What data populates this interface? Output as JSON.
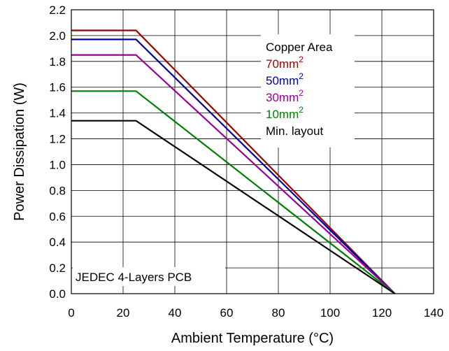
{
  "chart_data": {
    "type": "line",
    "xlabel": "Ambient Temperature (°C)",
    "ylabel": "Power Dissipation (W)",
    "xlim": [
      0,
      140
    ],
    "ylim": [
      0.0,
      2.2
    ],
    "xticks": [
      "0",
      "20",
      "40",
      "60",
      "80",
      "100",
      "120",
      "140"
    ],
    "yticks": [
      "0.0",
      "0.2",
      "0.4",
      "0.6",
      "0.8",
      "1.0",
      "1.2",
      "1.4",
      "1.6",
      "1.8",
      "2.0",
      "2.2"
    ],
    "grid": true,
    "legend_placement": "top-right",
    "legend_title": "Copper Area",
    "annotation": "JEDEC 4-Layers PCB",
    "series": [
      {
        "name": "70mm",
        "sup": "2",
        "color": "#990000",
        "x": [
          0,
          25,
          125
        ],
        "y": [
          2.04,
          2.04,
          0.0
        ]
      },
      {
        "name": "50mm",
        "sup": "2",
        "color": "#000099",
        "x": [
          0,
          25,
          125
        ],
        "y": [
          1.97,
          1.97,
          0.0
        ]
      },
      {
        "name": "30mm",
        "sup": "2",
        "color": "#990099",
        "x": [
          0,
          25,
          125
        ],
        "y": [
          1.85,
          1.85,
          0.0
        ]
      },
      {
        "name": "10mm",
        "sup": "2",
        "color": "#008000",
        "x": [
          0,
          25,
          125
        ],
        "y": [
          1.57,
          1.57,
          0.0
        ]
      },
      {
        "name": "Min. layout",
        "sup": "",
        "color": "#000000",
        "x": [
          0,
          25,
          125
        ],
        "y": [
          1.34,
          1.34,
          0.0
        ]
      }
    ]
  }
}
